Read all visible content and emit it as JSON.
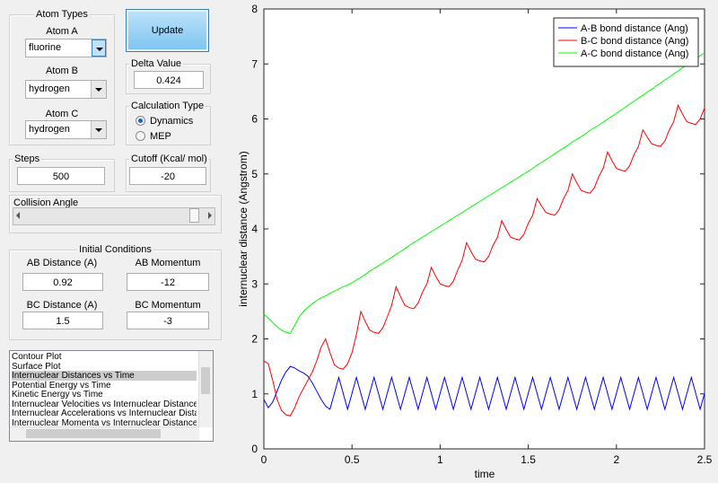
{
  "controls": {
    "atom_types": {
      "title": "Atom Types",
      "atom_a_label": "Atom A",
      "atom_a": "fluorine",
      "atom_b_label": "Atom B",
      "atom_b": "hydrogen",
      "atom_c_label": "Atom C",
      "atom_c": "hydrogen"
    },
    "update_button": "Update",
    "delta_value": {
      "title": "Delta Value",
      "value": "0.424"
    },
    "calculation_type": {
      "title": "Calculation Type",
      "options": [
        "Dynamics",
        "MEP"
      ],
      "selected": 0
    },
    "steps": {
      "title": "Steps",
      "value": "500"
    },
    "cutoff": {
      "title": "Cutoff (Kcal/ mol)",
      "value": "-20"
    },
    "collision_angle": {
      "title": "Collision Angle"
    },
    "initial_conditions": {
      "title": "Initial Conditions",
      "ab_distance_label": "AB Distance (A)",
      "ab_distance": "0.92",
      "ab_momentum_label": "AB Momentum",
      "ab_momentum": "-12",
      "bc_distance_label": "BC Distance (A)",
      "bc_distance": "1.5",
      "bc_momentum_label": "BC Momentum",
      "bc_momentum": "-3"
    },
    "plot_list": {
      "items": [
        "Contour Plot",
        "Surface Plot",
        "Internuclear Distances vs Time",
        "Potential Energy vs Time",
        "Kinetic Energy vs Time",
        "Internuclear Velocities vs Internuclear Distance",
        "Internuclear Accelerations vs Internuclear Dista",
        "Internuclear Momenta vs Internuclear Distance"
      ],
      "selected": 2
    }
  },
  "chart_data": {
    "type": "line",
    "xlabel": "time",
    "ylabel": "internuclear distance (Angstrom)",
    "x": [
      0,
      0.025,
      0.05,
      0.075,
      0.1,
      0.125,
      0.15,
      0.175,
      0.2,
      0.225,
      0.25,
      0.275,
      0.3,
      0.325,
      0.35,
      0.375,
      0.4,
      0.425,
      0.45,
      0.475,
      0.5,
      0.525,
      0.55,
      0.575,
      0.6,
      0.625,
      0.65,
      0.675,
      0.7,
      0.725,
      0.75,
      0.775,
      0.8,
      0.825,
      0.85,
      0.875,
      0.9,
      0.925,
      0.95,
      0.975,
      1,
      1.025,
      1.05,
      1.075,
      1.1,
      1.125,
      1.15,
      1.175,
      1.2,
      1.225,
      1.25,
      1.275,
      1.3,
      1.325,
      1.35,
      1.375,
      1.4,
      1.425,
      1.45,
      1.475,
      1.5,
      1.525,
      1.55,
      1.575,
      1.6,
      1.625,
      1.65,
      1.675,
      1.7,
      1.725,
      1.75,
      1.775,
      1.8,
      1.825,
      1.85,
      1.875,
      1.9,
      1.925,
      1.95,
      1.975,
      2,
      2.025,
      2.05,
      2.075,
      2.1,
      2.125,
      2.15,
      2.175,
      2.2,
      2.225,
      2.25,
      2.275,
      2.3,
      2.325,
      2.35,
      2.375,
      2.4,
      2.425,
      2.45,
      2.475,
      2.5
    ],
    "series": [
      {
        "name": "A-B bond distance (Ang)",
        "color": "#0000ff",
        "values": [
          0.9,
          0.75,
          0.85,
          1.05,
          1.25,
          1.4,
          1.5,
          1.47,
          1.42,
          1.38,
          1.32,
          1.2,
          1.05,
          0.9,
          0.78,
          0.72,
          1.01,
          1.3,
          1.01,
          0.72,
          1.01,
          1.3,
          1.01,
          0.72,
          1.01,
          1.3,
          1.01,
          0.72,
          1.01,
          1.3,
          1.01,
          0.72,
          1.01,
          1.3,
          1.01,
          0.72,
          1.01,
          1.3,
          1.01,
          0.72,
          1.01,
          1.3,
          1.01,
          0.72,
          1.01,
          1.3,
          1.01,
          0.72,
          1.01,
          1.3,
          1.01,
          0.72,
          1.01,
          1.3,
          1.01,
          0.72,
          1.01,
          1.3,
          1.01,
          0.72,
          1.01,
          1.3,
          1.01,
          0.72,
          1.01,
          1.3,
          1.01,
          0.72,
          1.01,
          1.3,
          1.01,
          0.72,
          1.01,
          1.3,
          1.01,
          0.72,
          1.01,
          1.3,
          1.01,
          0.72,
          1.01,
          1.3,
          1.01,
          0.72,
          1.01,
          1.3,
          1.01,
          0.72,
          1.01,
          1.3,
          1.01,
          0.72,
          1.01,
          1.3,
          1.01,
          0.72,
          1.01,
          1.3,
          1.01,
          0.72,
          1.01
        ]
      },
      {
        "name": "B-C bond distance (Ang)",
        "color": "#ff0000",
        "values": [
          1.6,
          1.55,
          1.25,
          0.9,
          0.7,
          0.62,
          0.6,
          0.75,
          0.95,
          1.1,
          1.25,
          1.4,
          1.6,
          1.85,
          2.0,
          1.75,
          1.53,
          1.47,
          1.45,
          1.55,
          1.75,
          2.08,
          2.5,
          2.32,
          2.16,
          2.12,
          2.1,
          2.2,
          2.4,
          2.61,
          2.95,
          2.77,
          2.61,
          2.57,
          2.55,
          2.65,
          2.85,
          3.0,
          3.3,
          3.14,
          3.0,
          2.97,
          2.95,
          3.05,
          3.25,
          3.43,
          3.75,
          3.59,
          3.45,
          3.42,
          3.4,
          3.5,
          3.7,
          3.85,
          4.15,
          3.99,
          3.85,
          3.82,
          3.8,
          3.9,
          4.1,
          4.25,
          4.55,
          4.42,
          4.3,
          4.27,
          4.25,
          4.35,
          4.55,
          4.7,
          5.0,
          4.84,
          4.7,
          4.67,
          4.65,
          4.75,
          4.95,
          5.1,
          5.4,
          5.24,
          5.1,
          5.07,
          5.05,
          5.15,
          5.35,
          5.5,
          5.8,
          5.67,
          5.55,
          5.52,
          5.5,
          5.6,
          5.8,
          5.95,
          6.25,
          6.09,
          5.95,
          5.92,
          5.9,
          6.0,
          6.2
        ]
      },
      {
        "name": "A-C bond distance (Ang)",
        "color": "#00ff00",
        "values": [
          2.45,
          2.38,
          2.3,
          2.22,
          2.16,
          2.12,
          2.1,
          2.25,
          2.4,
          2.5,
          2.58,
          2.64,
          2.7,
          2.75,
          2.78,
          2.83,
          2.87,
          2.91,
          2.95,
          2.98,
          3.02,
          3.07,
          3.12,
          3.17,
          3.23,
          3.28,
          3.33,
          3.38,
          3.43,
          3.48,
          3.54,
          3.59,
          3.64,
          3.7,
          3.75,
          3.8,
          3.85,
          3.9,
          3.95,
          4.0,
          4.05,
          4.1,
          4.15,
          4.2,
          4.25,
          4.3,
          4.35,
          4.4,
          4.45,
          4.5,
          4.55,
          4.6,
          4.65,
          4.7,
          4.75,
          4.8,
          4.85,
          4.9,
          4.95,
          5.0,
          5.05,
          5.1,
          5.16,
          5.21,
          5.26,
          5.31,
          5.37,
          5.42,
          5.47,
          5.52,
          5.58,
          5.63,
          5.68,
          5.73,
          5.79,
          5.84,
          5.89,
          5.94,
          6.0,
          6.05,
          6.1,
          6.16,
          6.21,
          6.27,
          6.32,
          6.38,
          6.43,
          6.49,
          6.54,
          6.6,
          6.65,
          6.71,
          6.76,
          6.82,
          6.87,
          6.93,
          6.98,
          7.04,
          7.09,
          7.15,
          7.2
        ]
      }
    ],
    "xlim": [
      0,
      2.5
    ],
    "xticks": [
      0,
      0.5,
      1,
      1.5,
      2,
      2.5
    ],
    "ylim": [
      0,
      8
    ],
    "yticks": [
      0,
      1,
      2,
      3,
      4,
      5,
      6,
      7,
      8
    ],
    "legend": "upper right"
  }
}
